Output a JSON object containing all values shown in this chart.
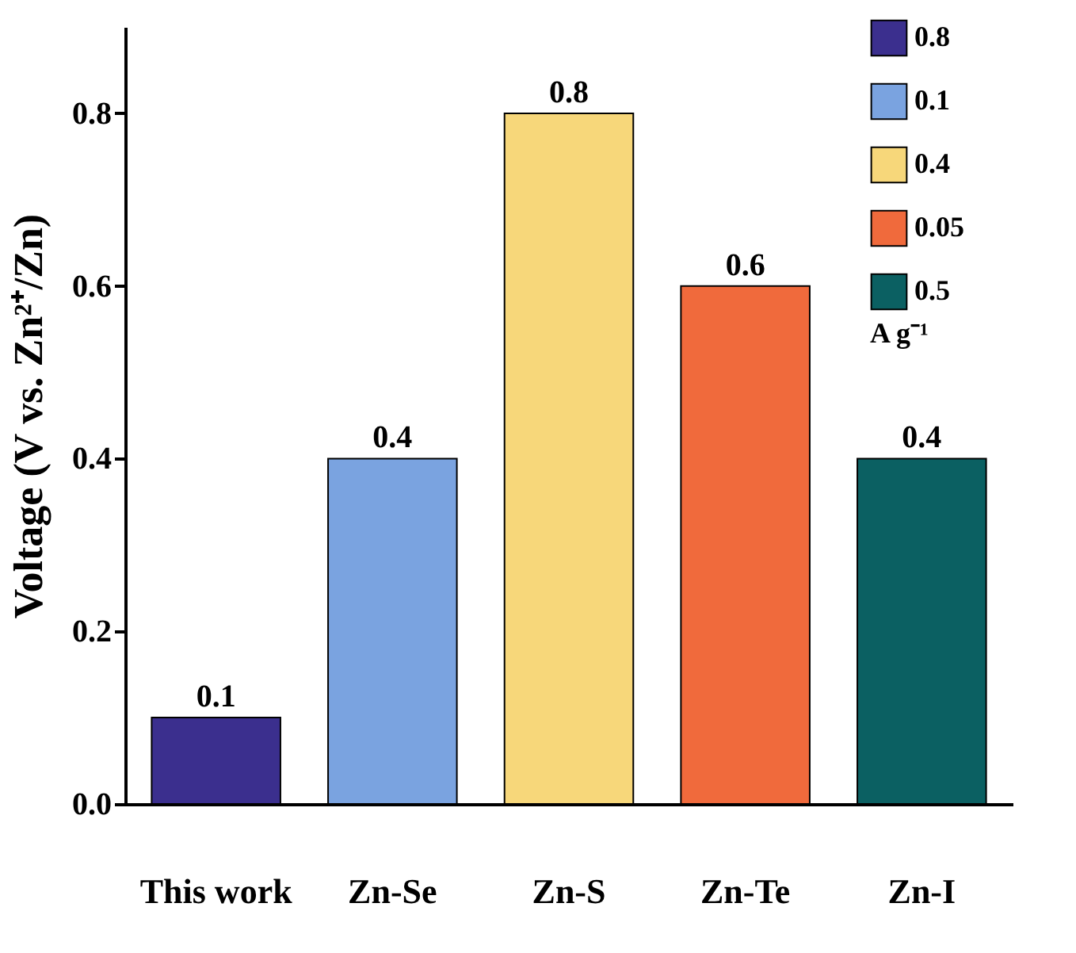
{
  "chart_data": {
    "type": "bar",
    "ylabel": "Voltage (V vs. Zn²⁺/Zn)",
    "legend_title": "A g⁻¹",
    "legend": "top right",
    "data_labels": true,
    "categories": [
      "This work",
      "Zn-Se",
      "Zn-S",
      "Zn-Te",
      "Zn-I"
    ],
    "series": [
      {
        "name": "0.8",
        "color": "#3b2f8e",
        "values": [
          0.1,
          null,
          null,
          null,
          null
        ]
      },
      {
        "name": "0.1",
        "color": "#7aa3e0",
        "values": [
          null,
          0.4,
          null,
          null,
          null
        ]
      },
      {
        "name": "0.4",
        "color": "#f7d77a",
        "values": [
          null,
          null,
          0.8,
          null,
          null
        ]
      },
      {
        "name": "0.05",
        "color": "#f06a3c",
        "values": [
          null,
          null,
          null,
          0.6,
          null
        ]
      },
      {
        "name": "0.5",
        "color": "#0b6062",
        "values": [
          null,
          null,
          null,
          null,
          0.4
        ]
      }
    ],
    "ylim": [
      0,
      0.9
    ],
    "yticks": [
      {
        "value": 0,
        "label": "0.0"
      },
      0.2,
      0.4,
      0.6,
      0.8
    ]
  }
}
